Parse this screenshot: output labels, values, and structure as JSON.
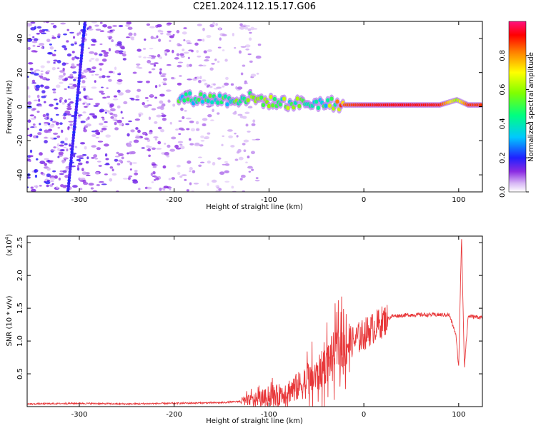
{
  "title": "C2E1.2024.112.15.17.G06",
  "chart_data": [
    {
      "type": "heatmap",
      "xlabel": "Height of straight line (km)",
      "ylabel": "Frequency (Hz)",
      "xlim": [
        -355,
        125
      ],
      "ylim": [
        -50,
        50
      ],
      "xticks": [
        -300,
        -200,
        -100,
        0,
        100
      ],
      "yticks": [
        -40,
        -20,
        0,
        20,
        40
      ],
      "colorbar": {
        "label": "Normalized spectral amplitude",
        "ticks": [
          "0.0",
          "0.2",
          "0.4",
          "0.6",
          "0.8"
        ],
        "range": [
          0,
          1
        ]
      },
      "main_line": [
        {
          "x": -195,
          "freq": 5,
          "amp": 0.45
        },
        {
          "x": -170,
          "freq": 5,
          "amp": 0.5
        },
        {
          "x": -140,
          "freq": 4,
          "amp": 0.5
        },
        {
          "x": -120,
          "freq": 5,
          "amp": 0.55
        },
        {
          "x": -100,
          "freq": 3,
          "amp": 0.55
        },
        {
          "x": -80,
          "freq": 2,
          "amp": 0.55
        },
        {
          "x": -60,
          "freq": 2,
          "amp": 0.5
        },
        {
          "x": -40,
          "freq": 2,
          "amp": 0.5
        },
        {
          "x": -20,
          "freq": 1,
          "amp": 0.85
        },
        {
          "x": 0,
          "freq": 1,
          "amp": 0.9
        },
        {
          "x": 40,
          "freq": 1,
          "amp": 0.92
        },
        {
          "x": 80,
          "freq": 1,
          "amp": 0.9
        },
        {
          "x": 98,
          "freq": 4,
          "amp": 0.6
        },
        {
          "x": 110,
          "freq": 1,
          "amp": 0.88
        },
        {
          "x": 125,
          "freq": 1,
          "amp": 0.88
        }
      ],
      "streak": {
        "x_start": -312,
        "freq_start": -50,
        "x_end": -294,
        "freq_end": 50
      }
    },
    {
      "type": "line",
      "xlabel": "Height of straight line (km)",
      "ylabel": "SNR (10 * v/v)",
      "scale_label": "(x10^4)",
      "xlim": [
        -355,
        125
      ],
      "ylim": [
        0,
        2.6
      ],
      "xticks": [
        -300,
        -200,
        -100,
        0,
        100
      ],
      "yticks": [
        0.5,
        1.0,
        1.5,
        2.0,
        2.5
      ],
      "series": [
        {
          "color": "#e8383a",
          "x": [
            -355,
            -300,
            -250,
            -200,
            -150,
            -130,
            -110,
            -90,
            -70,
            -50,
            -40,
            -30,
            -20,
            -10,
            0,
            10,
            20,
            30,
            50,
            70,
            90,
            97,
            100,
            103,
            106,
            110,
            125
          ],
          "y": [
            0.04,
            0.05,
            0.04,
            0.05,
            0.06,
            0.08,
            0.12,
            0.18,
            0.3,
            0.45,
            0.65,
            0.85,
            0.95,
            1.0,
            1.1,
            1.2,
            1.3,
            1.38,
            1.4,
            1.4,
            1.4,
            1.1,
            0.6,
            2.6,
            0.6,
            1.38,
            1.36
          ]
        }
      ]
    }
  ]
}
